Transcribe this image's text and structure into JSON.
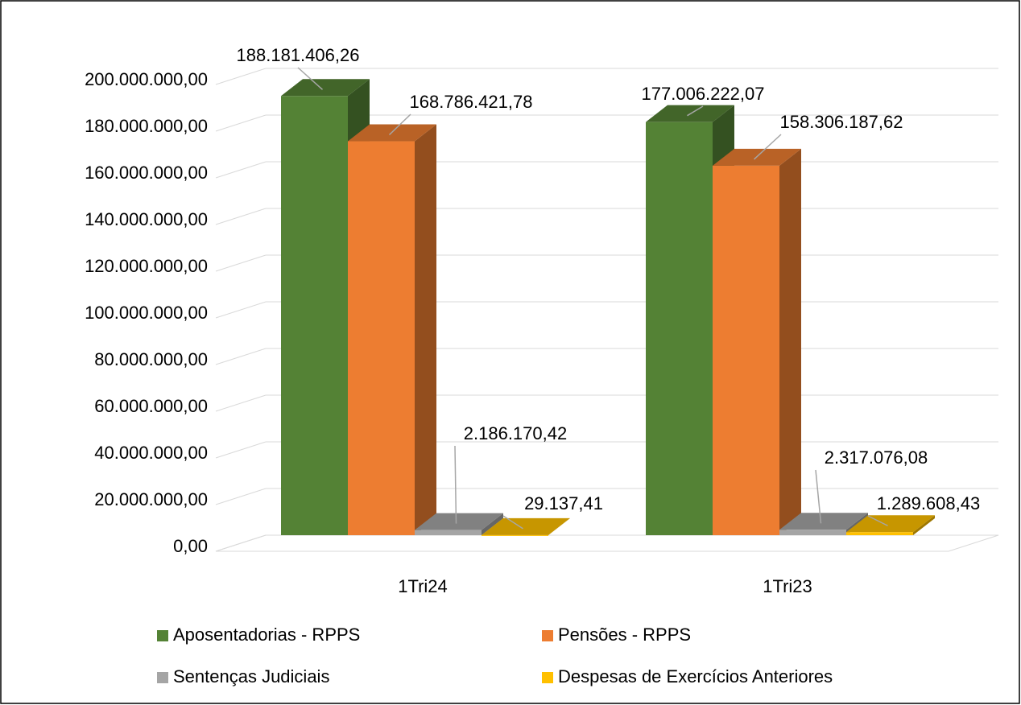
{
  "chart_data": {
    "type": "bar3d",
    "categories": [
      "1Tri24",
      "1Tri23"
    ],
    "series": [
      {
        "name": "Aposentadorias - RPPS",
        "color": "#548235",
        "values": [
          188181406.26,
          177006222.07
        ],
        "value_labels": [
          "188.181.406,26",
          "177.006.222,07"
        ]
      },
      {
        "name": "Pensões - RPPS",
        "color": "#ed7d31",
        "values": [
          168786421.78,
          158306187.62
        ],
        "value_labels": [
          "168.786.421,78",
          "158.306.187,62"
        ]
      },
      {
        "name": "Sentenças Judiciais",
        "color": "#a5a5a5",
        "values": [
          2186170.42,
          2317076.08
        ],
        "value_labels": [
          "2.186.170,42",
          "2.317.076,08"
        ]
      },
      {
        "name": "Despesas de Exercícios Anteriores",
        "color": "#ffc000",
        "values": [
          29137.41,
          1289608.43
        ],
        "value_labels": [
          "29.137,41",
          "1.289.608,43"
        ]
      }
    ],
    "ylim": [
      0,
      200000000
    ],
    "yticks": [
      {
        "value": 0,
        "label": "0,00"
      },
      {
        "value": 20000000,
        "label": "20.000.000,00"
      },
      {
        "value": 40000000,
        "label": "40.000.000,00"
      },
      {
        "value": 60000000,
        "label": "60.000.000,00"
      },
      {
        "value": 80000000,
        "label": "80.000.000,00"
      },
      {
        "value": 100000000,
        "label": "100.000.000,00"
      },
      {
        "value": 120000000,
        "label": "120.000.000,00"
      },
      {
        "value": 140000000,
        "label": "140.000.000,00"
      },
      {
        "value": 160000000,
        "label": "160.000.000,00"
      },
      {
        "value": 180000000,
        "label": "180.000.000,00"
      },
      {
        "value": 200000000,
        "label": "200.000.000,00"
      }
    ],
    "grid": true,
    "legend": "bottom"
  }
}
